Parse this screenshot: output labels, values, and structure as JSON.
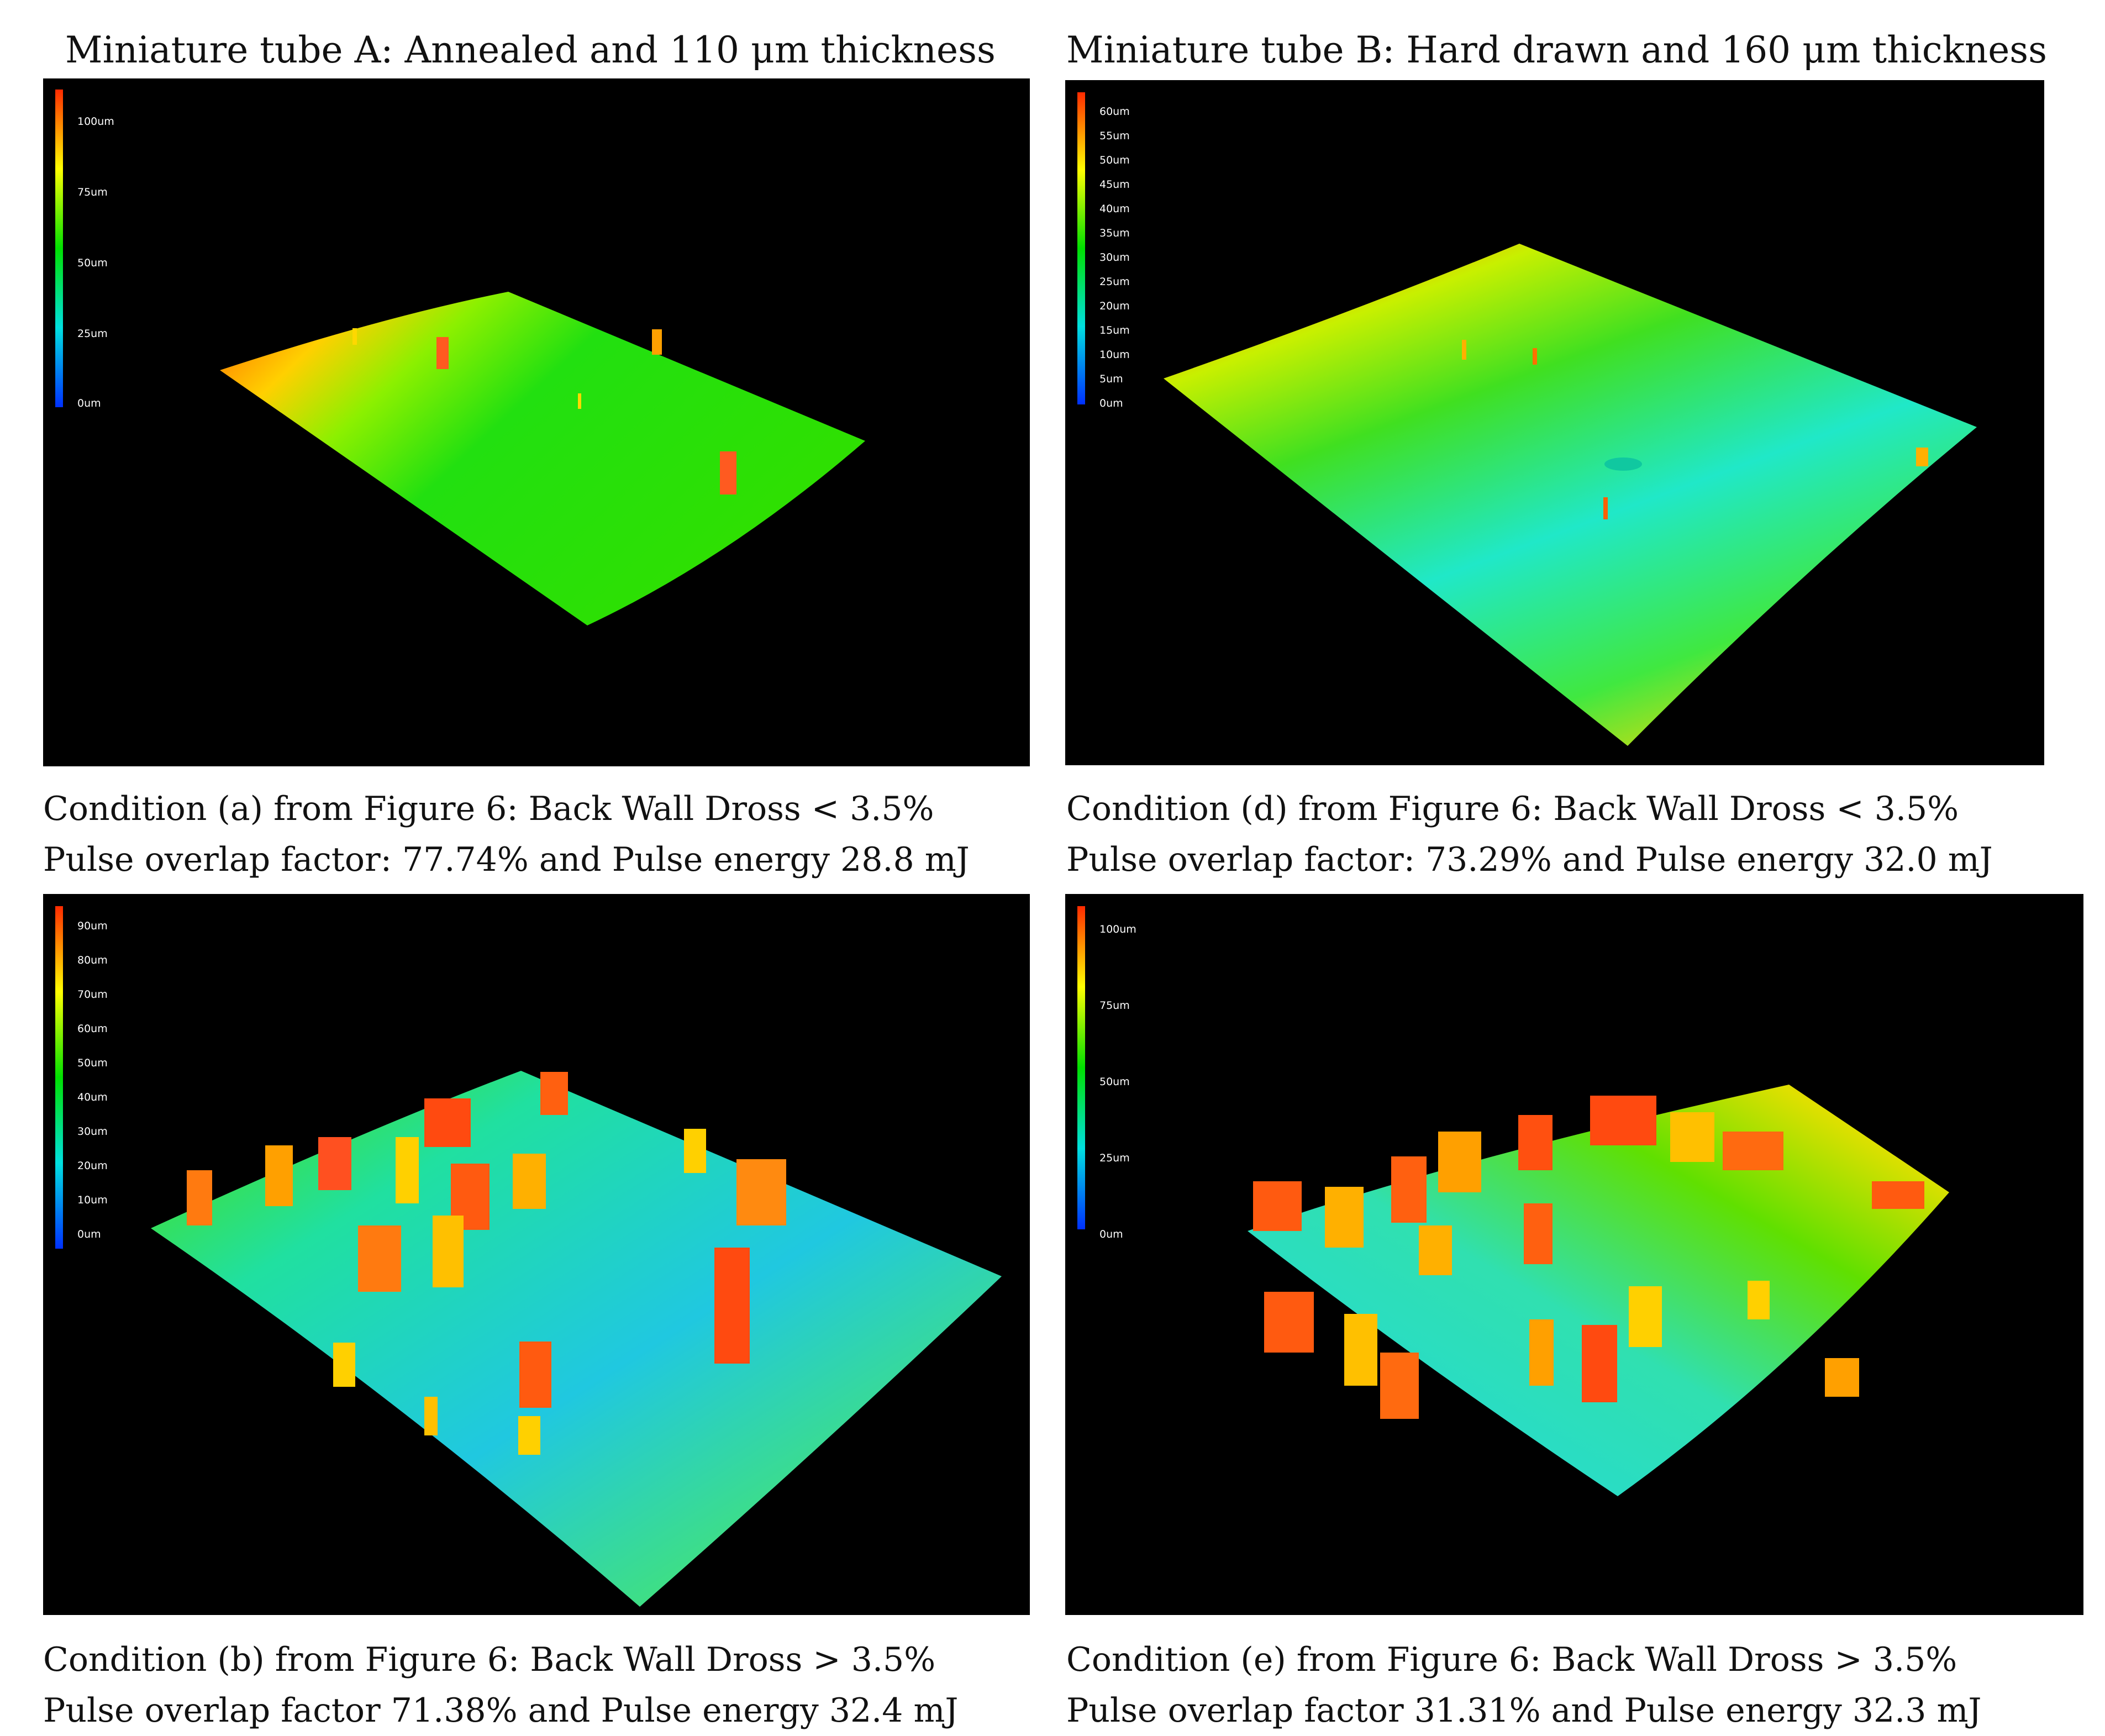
{
  "columns": [
    {
      "title": "Miniature tube A: Annealed and 110 μm thickness"
    },
    {
      "title": "Miniature tube B: Hard drawn and 160 μm thickness"
    }
  ],
  "panels": {
    "a": {
      "legend_ticks": [
        "100um",
        "75um",
        "50um",
        "25um",
        "0um"
      ],
      "caption_line1": "Condition (a) from Figure 6: Back Wall Dross < 3.5%",
      "caption_line2": "Pulse overlap factor: 77.74% and Pulse energy 28.8 mJ"
    },
    "d": {
      "legend_ticks": [
        "60um",
        "55um",
        "50um",
        "45um",
        "40um",
        "35um",
        "30um",
        "25um",
        "20um",
        "15um",
        "10um",
        "5um",
        "0um"
      ],
      "caption_line1": "Condition (d) from Figure 6: Back Wall Dross < 3.5%",
      "caption_line2": "Pulse overlap factor: 73.29% and Pulse energy 32.0 mJ"
    },
    "b": {
      "legend_ticks": [
        "90um",
        "80um",
        "70um",
        "60um",
        "50um",
        "40um",
        "30um",
        "20um",
        "10um",
        "0um"
      ],
      "caption_line1": "Condition (b) from Figure 6: Back Wall Dross > 3.5%",
      "caption_line2": "Pulse overlap factor 71.38% and Pulse energy 32.4 mJ"
    },
    "e": {
      "legend_ticks": [
        "100um",
        "75um",
        "50um",
        "25um",
        "0um"
      ],
      "caption_line1": "Condition (e) from Figure 6: Back Wall Dross > 3.5%",
      "caption_line2": "Pulse overlap factor 31.31% and Pulse energy 32.3 mJ"
    }
  },
  "colors": {
    "background": "#000000",
    "scale_top": "#ff2a00",
    "scale_upper": "#ffff00",
    "scale_mid": "#00e000",
    "scale_lower": "#00e0e0",
    "scale_bottom": "#0030ff"
  }
}
